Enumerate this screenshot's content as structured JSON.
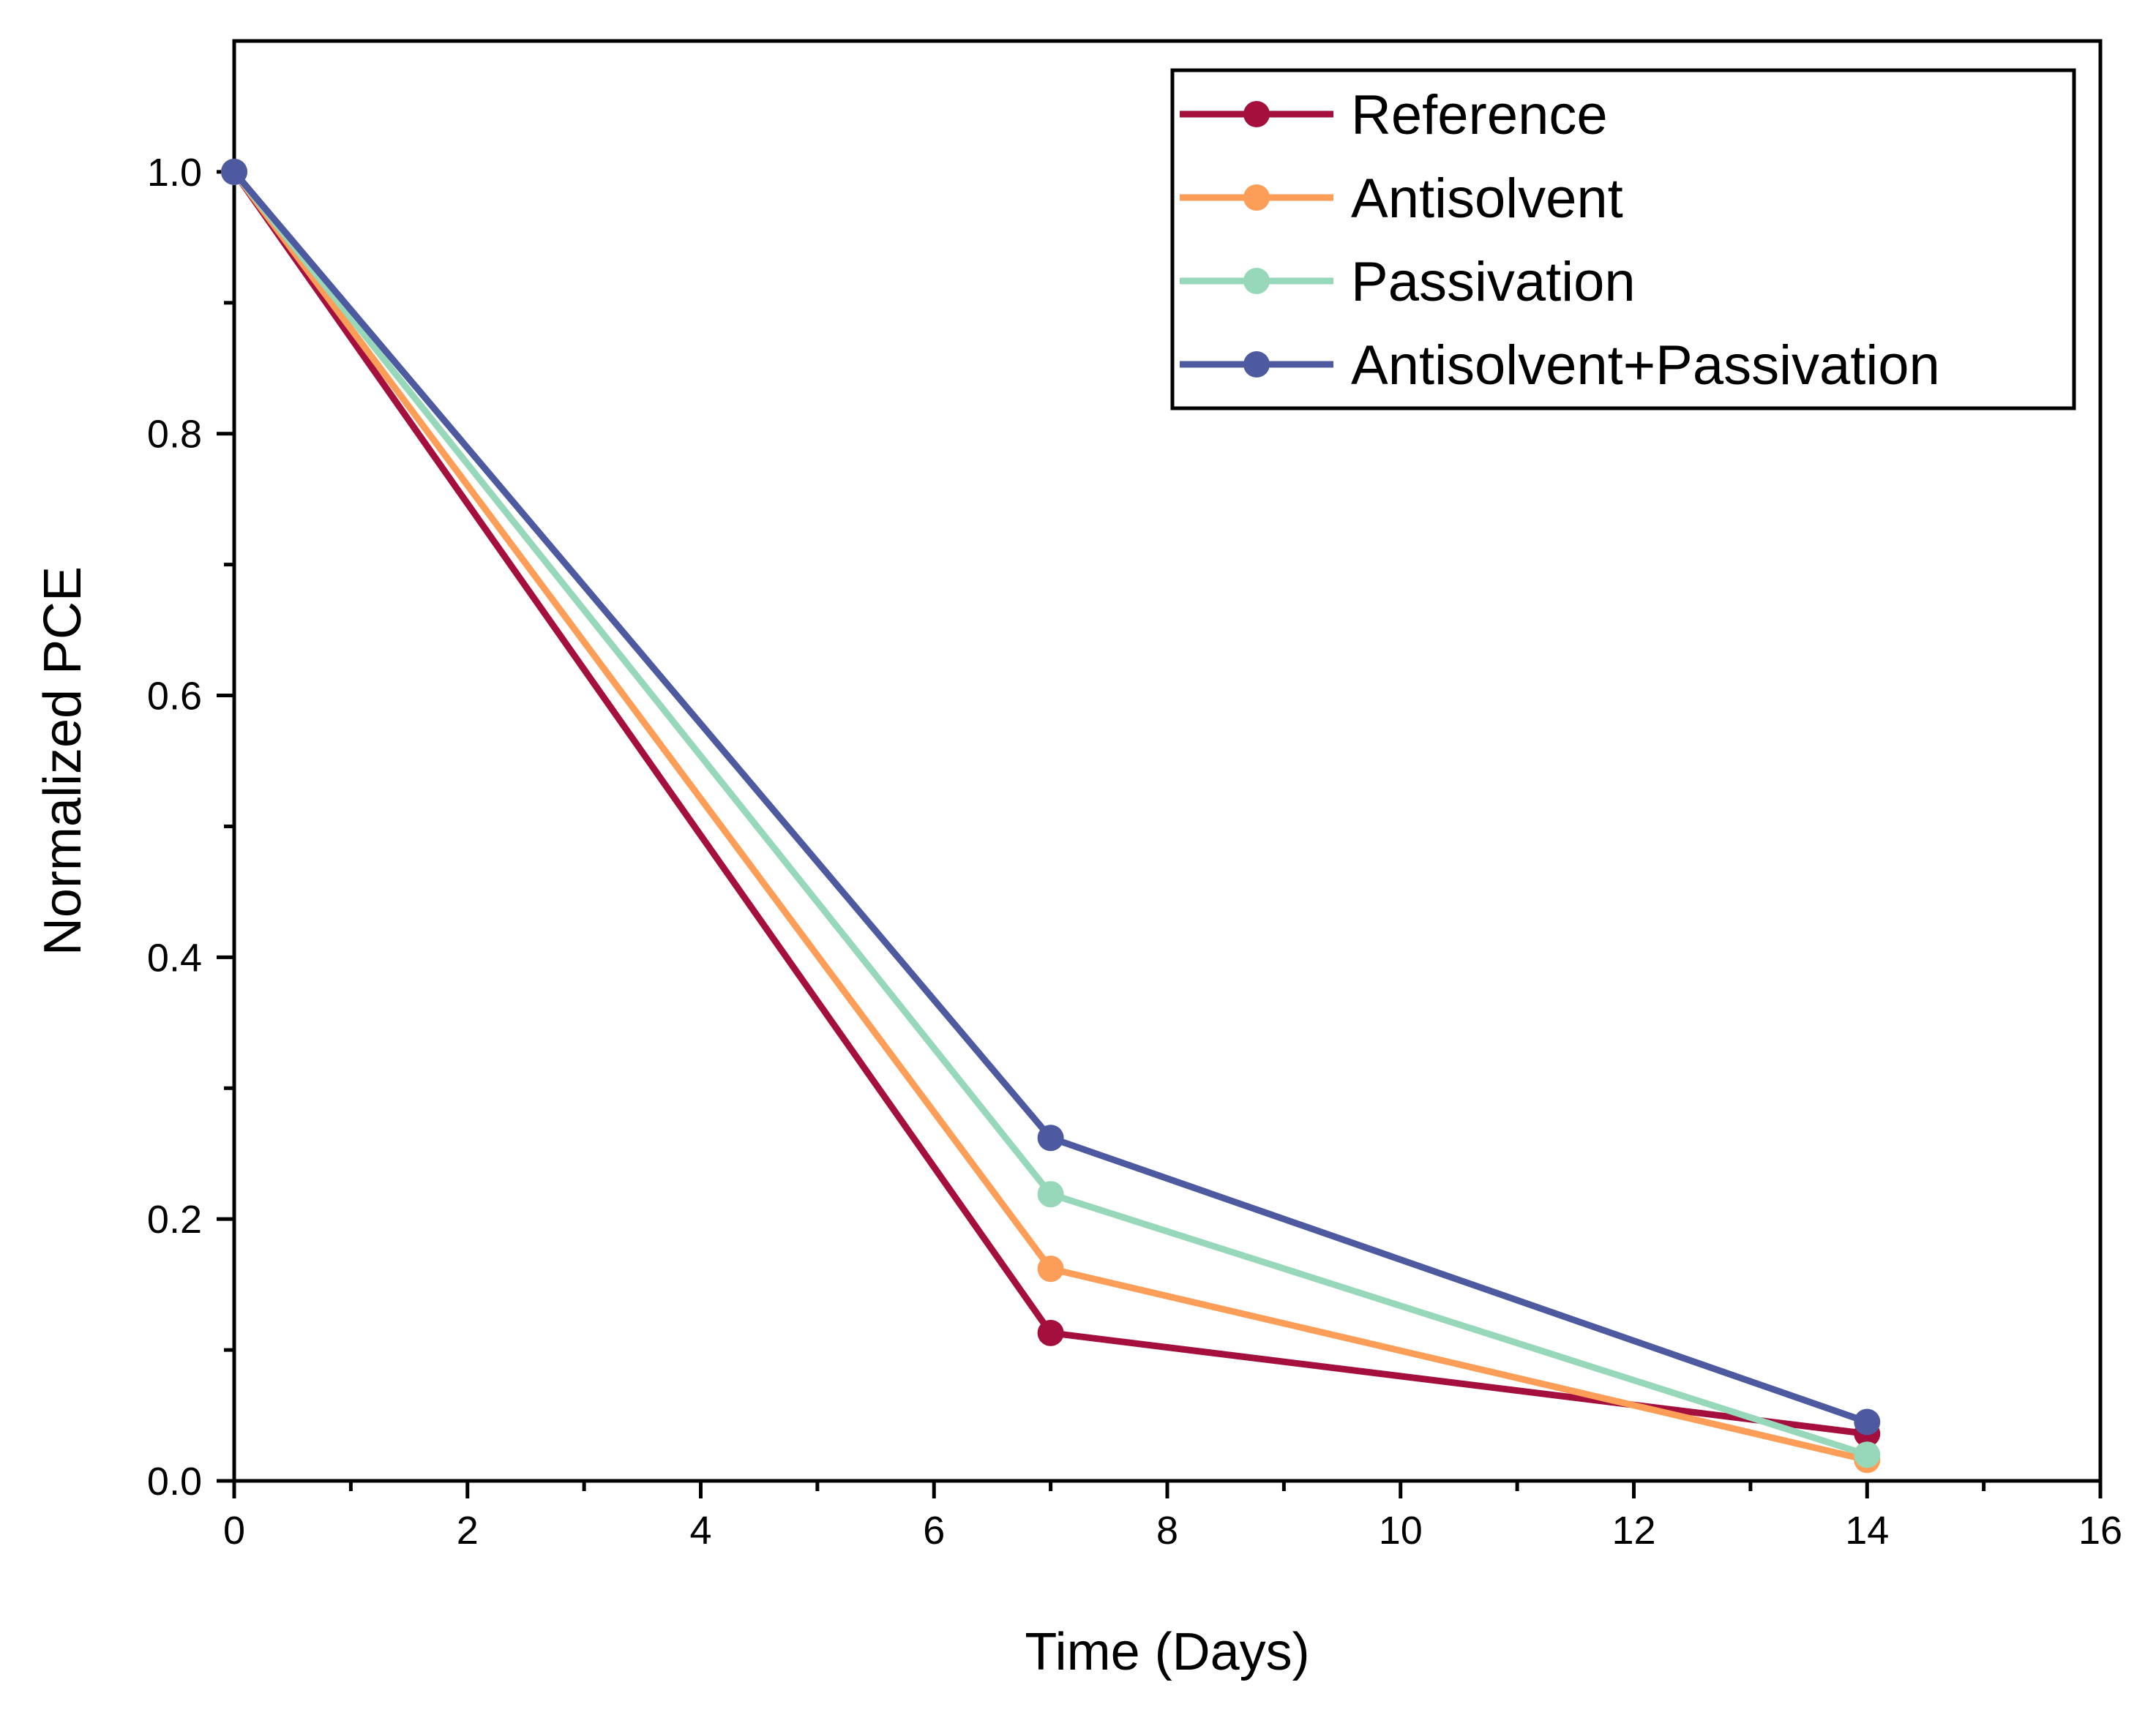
{
  "chart_data": {
    "type": "line",
    "title": "",
    "xlabel": "Time (Days)",
    "ylabel": "Normalized PCE",
    "xlim": [
      0,
      16
    ],
    "ylim": [
      0,
      1.1
    ],
    "x_ticks": [
      "0",
      "2",
      "4",
      "6",
      "8",
      "10",
      "12",
      "14",
      "16"
    ],
    "y_ticks": [
      "0.0",
      "0.2",
      "0.4",
      "0.6",
      "0.8",
      "1.0"
    ],
    "x": [
      0,
      7,
      14
    ],
    "grid": false,
    "legend_position": "top-right",
    "series": [
      {
        "name": "Reference",
        "color": "#a50f3e",
        "values": [
          1.0,
          0.113,
          0.036
        ]
      },
      {
        "name": "Antisolvent",
        "color": "#fc9e57",
        "values": [
          1.0,
          0.162,
          0.016
        ]
      },
      {
        "name": "Passivation",
        "color": "#97d8bb",
        "values": [
          1.0,
          0.219,
          0.02
        ]
      },
      {
        "name": "Antisolvent+Passivation",
        "color": "#4d5a9f",
        "values": [
          1.0,
          0.262,
          0.045
        ]
      }
    ]
  }
}
